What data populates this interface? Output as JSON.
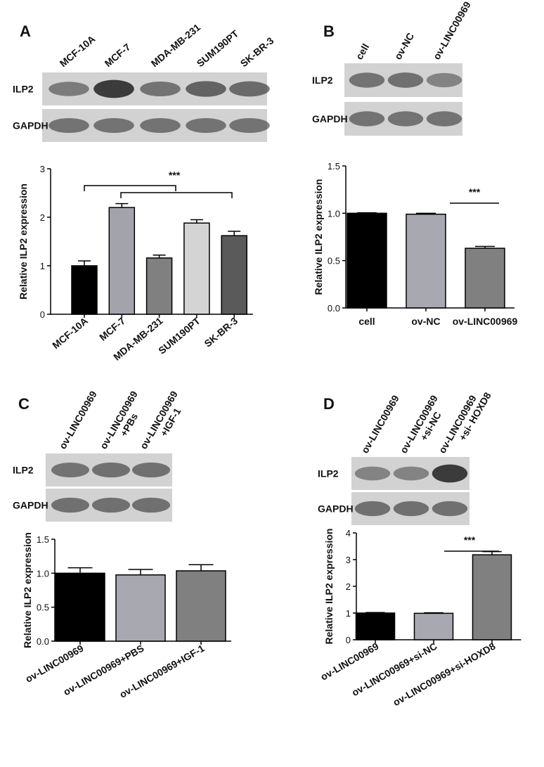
{
  "chart_data": [
    {
      "type": "bar",
      "panel": "A",
      "blot": {
        "lanes": [
          [
            "MCF-10A"
          ],
          [
            "MCF-7"
          ],
          [
            "MDA-MB-231"
          ],
          [
            "SUM190PT"
          ],
          [
            "SK-BR-3"
          ]
        ],
        "rows": [
          "ILP2",
          "GAPDH"
        ]
      },
      "ylabel": "Relative ILP2 expression",
      "categories": [
        "MCF-10A",
        "MCF-7",
        "MDA-MB-231",
        "SUM190PT",
        "SK-BR-3"
      ],
      "values": [
        1.0,
        2.2,
        1.16,
        1.88,
        1.62
      ],
      "errors": [
        0.1,
        0.08,
        0.06,
        0.07,
        0.09
      ],
      "colors": [
        "#000000",
        "#a3a3ab",
        "#808080",
        "#d4d4d4",
        "#5a5a5a"
      ],
      "ylim": [
        0,
        3
      ],
      "yticks": [
        0,
        1,
        2,
        3
      ],
      "annotation": "***"
    },
    {
      "type": "bar",
      "panel": "B",
      "blot": {
        "lanes": [
          [
            "cell"
          ],
          [
            "ov-NC"
          ],
          [
            "ov-LINC00969"
          ]
        ],
        "rows": [
          "ILP2",
          "GAPDH"
        ]
      },
      "ylabel": "Relative ILP2 expression",
      "categories": [
        "cell",
        "ov-NC",
        "ov-LINC00969"
      ],
      "values": [
        1.0,
        0.99,
        0.63
      ],
      "errors": [
        0.005,
        0.01,
        0.02
      ],
      "colors": [
        "#000000",
        "#a8a8b0",
        "#808080"
      ],
      "ylim": [
        0,
        1.5
      ],
      "yticks": [
        {
          "value": 0,
          "label": "0.0"
        },
        0.5,
        {
          "value": 1,
          "label": "1.0"
        },
        1.5
      ],
      "annotation": "***"
    },
    {
      "type": "bar",
      "panel": "C",
      "blot": {
        "lanes": [
          [
            "ov-LINC00969"
          ],
          [
            "ov-LINC00969",
            "+PBs"
          ],
          [
            "ov-LINC00969",
            "+IGF-1"
          ]
        ],
        "rows": [
          "ILP2",
          "GAPDH"
        ]
      },
      "ylabel": "Relative ILP2 expression",
      "categories": [
        "ov-LINC00969",
        "ov-LINC00969+PBS",
        "ov-LINC00969+IGF-1"
      ],
      "values": [
        1.0,
        0.975,
        1.035
      ],
      "errors": [
        0.08,
        0.08,
        0.09
      ],
      "colors": [
        "#000000",
        "#a8a8b0",
        "#808080"
      ],
      "ylim": [
        0,
        1.5
      ],
      "yticks": [
        {
          "value": 0,
          "label": "0.0"
        },
        0.5,
        {
          "value": 1,
          "label": "1.0"
        },
        1.5
      ]
    },
    {
      "type": "bar",
      "panel": "D",
      "blot": {
        "lanes": [
          [
            "ov-LINC00969"
          ],
          [
            "ov-LINC00969",
            "+si-NC"
          ],
          [
            "ov-LINC00969",
            "+si- HOXD8"
          ]
        ],
        "rows": [
          "ILP2",
          "GAPDH"
        ]
      },
      "ylabel": "Relative ILP2 expression",
      "categories": [
        "ov-LINC00969",
        "ov-LINC00969+si-NC",
        "ov-LINC00969+si-HOXD8"
      ],
      "values": [
        1.0,
        0.99,
        3.18
      ],
      "errors": [
        0.02,
        0.02,
        0.12
      ],
      "colors": [
        "#000000",
        "#a8a8b0",
        "#808080"
      ],
      "ylim": [
        0,
        4
      ],
      "yticks": [
        0,
        1,
        2,
        3,
        4
      ],
      "annotation": "***"
    }
  ]
}
